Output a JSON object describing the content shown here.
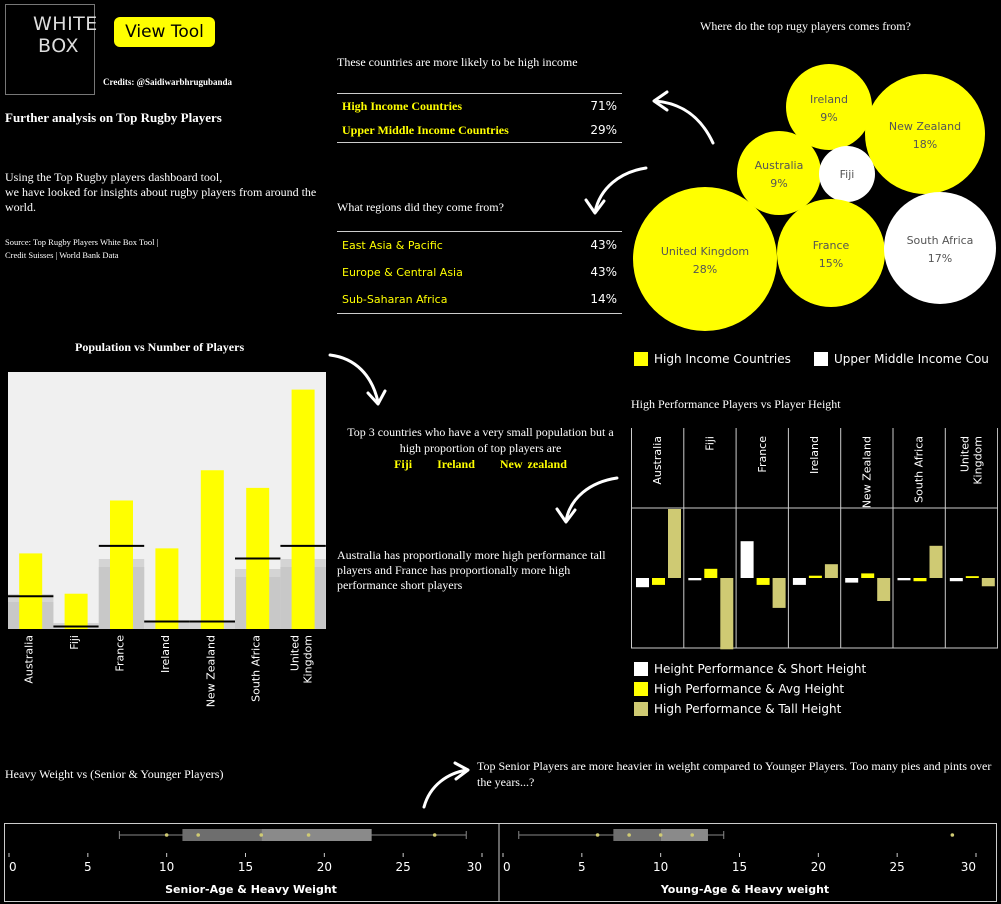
{
  "header": {
    "logo_line1": "WHITE",
    "logo_line2": "BOX",
    "view_tool": "View Tool",
    "credits": "Credits: @Saidiwarbhrugubanda"
  },
  "intro": {
    "title": "Further analysis on Top Rugby Players",
    "body": "Using the Top Rugby players dashboard tool,\nwe have looked for insights about rugby players from around the world.",
    "source_line1": "Source: Top Rugby Players White Box Tool |",
    "source_line2": "Credit Suisses | World Bank Data"
  },
  "income": {
    "heading": "These countries are more likely to be high income",
    "rows": [
      {
        "label": "High Income Countries",
        "value": "71%"
      },
      {
        "label": "Upper Middle Income Countries",
        "value": "29%"
      }
    ]
  },
  "regions": {
    "heading": "What regions did they come from?",
    "rows": [
      {
        "label": "East Asia & Pacific",
        "value": "43%"
      },
      {
        "label": "Europe & Central Asia",
        "value": "43%"
      },
      {
        "label": "Sub-Saharan Africa",
        "value": "14%"
      }
    ]
  },
  "bubbles": {
    "title": "Where do the top rugy players comes from?",
    "items": [
      {
        "name": "Ireland",
        "pct": "9%",
        "group": "high"
      },
      {
        "name": "New Zealand",
        "pct": "18%",
        "group": "high"
      },
      {
        "name": "Australia",
        "pct": "9%",
        "group": "high"
      },
      {
        "name": "Fiji",
        "pct": "",
        "group": "upper"
      },
      {
        "name": "United Kingdom",
        "pct": "28%",
        "group": "high"
      },
      {
        "name": "France",
        "pct": "15%",
        "group": "high"
      },
      {
        "name": "South Africa",
        "pct": "17%",
        "group": "upper"
      }
    ],
    "legend": [
      {
        "label": "High Income Countries",
        "color": "#ffff00"
      },
      {
        "label": "Upper Middle Income Cou",
        "color": "#ffffff"
      }
    ]
  },
  "population": {
    "title": "Population vs Number of Players",
    "note_line1": "Top 3 countries who have a very small population but a",
    "note_line2": "high proportion of top players are",
    "highlight": [
      "Fiji",
      "Ireland",
      "New zealand"
    ]
  },
  "performance": {
    "title": "High Performance Players vs Player Height",
    "note": "Australia has proportionally more high performance tall players and France has proportionally more high performance short players",
    "legend": [
      {
        "label": "Height Performance & Short Height",
        "color": "#ffffff"
      },
      {
        "label": "High Performance & Avg Height",
        "color": "#ffff00"
      },
      {
        "label": "High Performance & Tall Height",
        "color": "#cfca73"
      }
    ]
  },
  "weight": {
    "title": "Heavy Weight vs (Senior & Younger Players)",
    "note": "Top Senior Players are more heavier in weight compared to Younger Players. Too many pies and pints over the years...?",
    "left_label": "Senior-Age & Heavy Weight",
    "right_label": "Young-Age & Heavy weight"
  },
  "colors": {
    "accent": "#ffff00",
    "tall": "#cfca73",
    "background": "#000000"
  },
  "chart_data": [
    {
      "type": "bar",
      "title": "Population vs Number of Players",
      "categories": [
        "Australia",
        "Fiji",
        "France",
        "Ireland",
        "New Zealand",
        "South Africa",
        "United Kingdom"
      ],
      "series": [
        {
          "name": "",
          "values": [
            30,
            14,
            51,
            32,
            63,
            56,
            95
          ]
        }
      ],
      "reference_values": [
        13,
        1,
        33,
        3,
        3,
        28,
        33
      ],
      "ylim": [
        0,
        100
      ]
    },
    {
      "type": "bar",
      "title": "High Performance Players vs Player Height",
      "categories": [
        "Australia",
        "Fiji",
        "France",
        "Ireland",
        "New Zealand",
        "South Africa",
        "United Kingdom"
      ],
      "series": [
        {
          "name": "Height Performance & Short Height",
          "values": [
            -2,
            -0.5,
            8,
            -1.5,
            -1,
            -0.5,
            -0.7
          ]
        },
        {
          "name": "High Performance & Avg Height",
          "values": [
            -1.5,
            2,
            -1.5,
            0.5,
            1,
            -0.7,
            0.4
          ]
        },
        {
          "name": "High Performance & Tall Height",
          "values": [
            15,
            -15.5,
            -6.5,
            3,
            -5,
            7,
            -1.8
          ]
        }
      ],
      "ylim": [
        -17,
        17
      ]
    },
    {
      "type": "box",
      "title": "Senior-Age & Heavy Weight",
      "xlim": [
        0,
        30
      ],
      "ticks": [
        0,
        5,
        10,
        15,
        20,
        25,
        30
      ],
      "whisker_low": 7,
      "q1": 11,
      "median": 16,
      "q3": 23,
      "whisker_high": 29,
      "points": [
        10,
        12,
        16,
        19,
        27
      ]
    },
    {
      "type": "box",
      "title": "Young-Age & Heavy weight",
      "xlim": [
        0,
        30
      ],
      "ticks": [
        0,
        5,
        10,
        15,
        20,
        25,
        30
      ],
      "whisker_low": 1,
      "q1": 7,
      "median": 10,
      "q3": 13,
      "whisker_high": 14,
      "points": [
        6,
        8,
        10,
        12,
        28.5
      ]
    }
  ]
}
